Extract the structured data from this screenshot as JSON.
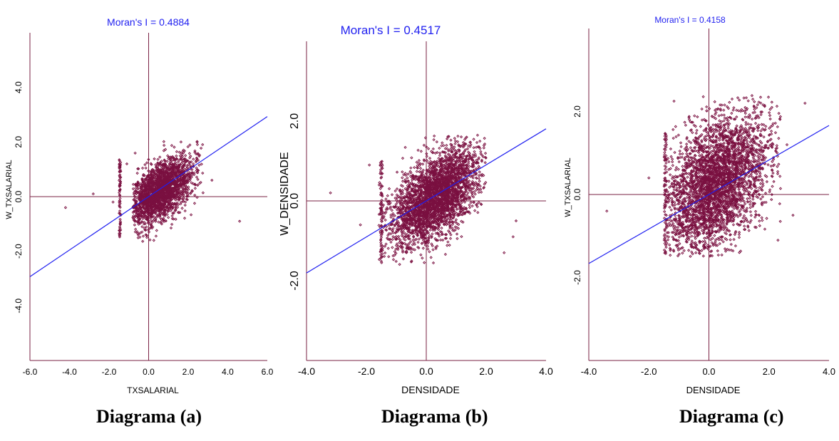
{
  "colors": {
    "frame": "#7a2143",
    "points": "#7a1040",
    "regression": "#1f1ff0",
    "title": "#1f1ff0",
    "text": "#000000"
  },
  "captions": [
    "Diagrama (a)",
    "Diagrama (b)",
    "Diagrama (c)"
  ],
  "chart_data": [
    {
      "type": "scatter",
      "title": "Moran's I = 0.4884",
      "xlabel": "TXSALARIAL",
      "ylabel": "W_TXSALARIAL",
      "xlim": [
        -6.0,
        6.0
      ],
      "ylim": [
        -6.0,
        6.0
      ],
      "xticks": [
        "-6.0",
        "-4.0",
        "-2.0",
        "0.0",
        "2.0",
        "4.0",
        "6.0"
      ],
      "yticks": [
        "-4.0",
        "-2.0",
        "0.0",
        "2.0",
        "4.0"
      ],
      "slope": 0.4884,
      "cloud": {
        "cx": 0.6,
        "cy": 0.2,
        "sx": 0.8,
        "sy": 0.62,
        "rho": 0.55,
        "n": 2200,
        "seed": 11,
        "xclip": [
          -0.8,
          2.8
        ],
        "yclip": [
          -1.7,
          2.1
        ]
      },
      "stripe": {
        "x": -1.45,
        "ymin": -1.6,
        "ymax": 1.4,
        "n": 70
      },
      "outliers": [
        [
          -4.2,
          -0.4
        ],
        [
          -2.8,
          0.1
        ],
        [
          4.6,
          -0.9
        ],
        [
          -1.8,
          -0.2
        ],
        [
          3.2,
          0.6
        ],
        [
          -1.1,
          1.2
        ]
      ]
    },
    {
      "type": "scatter",
      "title": "Moran's I = 0.4517",
      "xlabel": "DENSIDADE",
      "ylabel": "W_DENSIDADE",
      "xlim": [
        -4.0,
        4.0
      ],
      "ylim": [
        -4.0,
        4.0
      ],
      "xticks": [
        "-4.0",
        "-2.0",
        "0.0",
        "2.0",
        "4.0"
      ],
      "yticks": [
        "-2.0",
        "0.0",
        "2.0"
      ],
      "slope": 0.4517,
      "cloud": {
        "cx": 0.3,
        "cy": 0.1,
        "sx": 0.75,
        "sy": 0.6,
        "rho": 0.55,
        "n": 3000,
        "seed": 23,
        "xclip": [
          -1.6,
          2.0
        ],
        "yclip": [
          -1.6,
          1.65
        ]
      },
      "stripe": {
        "x": -1.5,
        "ymin": -1.6,
        "ymax": 1.0,
        "n": 80
      },
      "outliers": [
        [
          -3.2,
          0.2
        ],
        [
          2.9,
          -0.9
        ],
        [
          3.0,
          -0.5
        ],
        [
          -1.9,
          0.9
        ],
        [
          2.6,
          -1.3
        ],
        [
          -2.2,
          -0.6
        ]
      ]
    },
    {
      "type": "scatter",
      "title": "Moran's I = 0.4158",
      "xlabel": "DENSIDADE",
      "ylabel": "W_TXSALARIAL",
      "xlim": [
        -4.0,
        4.0
      ],
      "ylim": [
        -4.0,
        4.0
      ],
      "xticks": [
        "-4.0",
        "-2.0",
        "0.0",
        "2.0",
        "4.0"
      ],
      "yticks": [
        "-2.0",
        "0.0",
        "2.0"
      ],
      "slope": 0.4158,
      "cloud": {
        "cx": 0.2,
        "cy": 0.25,
        "sx": 0.85,
        "sy": 0.85,
        "rho": 0.4,
        "n": 3300,
        "seed": 37,
        "xclip": [
          -1.5,
          2.4
        ],
        "yclip": [
          -1.5,
          2.4
        ]
      },
      "stripe": {
        "x": -1.45,
        "ymin": -1.5,
        "ymax": 1.5,
        "n": 80
      },
      "outliers": [
        [
          -3.4,
          -0.4
        ],
        [
          3.2,
          2.2
        ],
        [
          2.6,
          1.2
        ],
        [
          2.8,
          -0.5
        ],
        [
          2.3,
          -1.1
        ],
        [
          -2.0,
          0.4
        ]
      ]
    }
  ]
}
